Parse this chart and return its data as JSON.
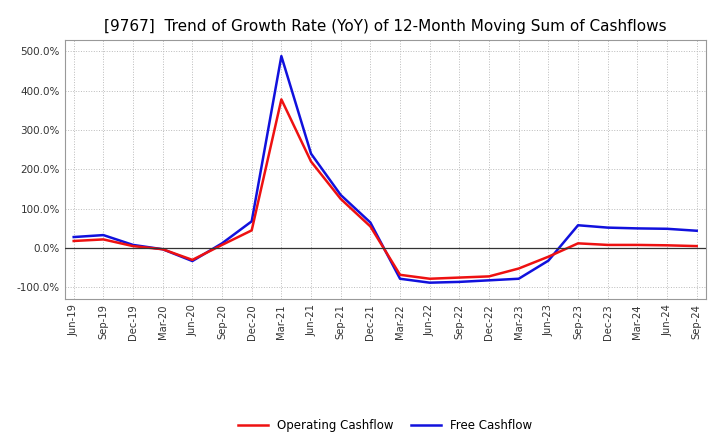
{
  "title": "[9767]  Trend of Growth Rate (YoY) of 12-Month Moving Sum of Cashflows",
  "title_fontsize": 11,
  "background_color": "#ffffff",
  "grid_color": "#bbbbbb",
  "ylim": [
    -130,
    530
  ],
  "yticks": [
    -100,
    0,
    100,
    200,
    300,
    400,
    500
  ],
  "x_labels": [
    "Jun-19",
    "Sep-19",
    "Dec-19",
    "Mar-20",
    "Jun-20",
    "Sep-20",
    "Dec-20",
    "Mar-21",
    "Jun-21",
    "Sep-21",
    "Dec-21",
    "Mar-22",
    "Jun-22",
    "Sep-22",
    "Dec-22",
    "Mar-23",
    "Jun-23",
    "Sep-23",
    "Dec-23",
    "Mar-24",
    "Jun-24",
    "Sep-24"
  ],
  "operating_cashflow": [
    18,
    22,
    5,
    -3,
    -30,
    8,
    45,
    378,
    220,
    125,
    55,
    -68,
    -78,
    -75,
    -72,
    -52,
    -22,
    12,
    8,
    8,
    7,
    5
  ],
  "free_cashflow": [
    28,
    33,
    8,
    -3,
    -33,
    12,
    68,
    488,
    240,
    135,
    65,
    -78,
    -88,
    -86,
    -82,
    -78,
    -32,
    58,
    52,
    50,
    49,
    44
  ],
  "op_color": "#ee1111",
  "free_color": "#1111dd",
  "line_width": 1.8,
  "legend_op_label": "Operating Cashflow",
  "legend_free_label": "Free Cashflow"
}
